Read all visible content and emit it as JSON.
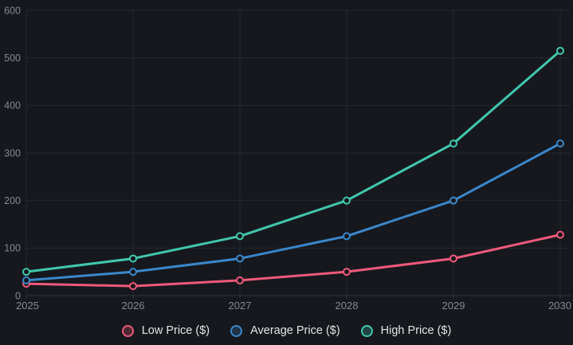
{
  "chart_data": {
    "type": "line",
    "x": [
      "2025",
      "2026",
      "2027",
      "2028",
      "2029",
      "2030"
    ],
    "series": [
      {
        "name": "Low Price ($)",
        "color": "#f0597b",
        "values": [
          25,
          20,
          32,
          50,
          78,
          128
        ]
      },
      {
        "name": "Average Price ($)",
        "color": "#3a87cb",
        "values": [
          32,
          50,
          78,
          125,
          200,
          320
        ]
      },
      {
        "name": "High Price ($)",
        "color": "#41c7ae",
        "values": [
          50,
          78,
          125,
          200,
          320,
          515
        ]
      }
    ],
    "title": "",
    "xlabel": "",
    "ylabel": "",
    "ylim": [
      0,
      600
    ],
    "yticks": [
      "0",
      "100",
      "200",
      "300",
      "400",
      "500",
      "600"
    ],
    "grid": true,
    "legend_position": "bottom"
  },
  "colors": {
    "background": "#16181d",
    "grid": "#24272c",
    "axis_line": "#33363c",
    "tick_label": "#85888e",
    "legend_text": "#e4e5e7",
    "marker_fill": "#16181d"
  }
}
